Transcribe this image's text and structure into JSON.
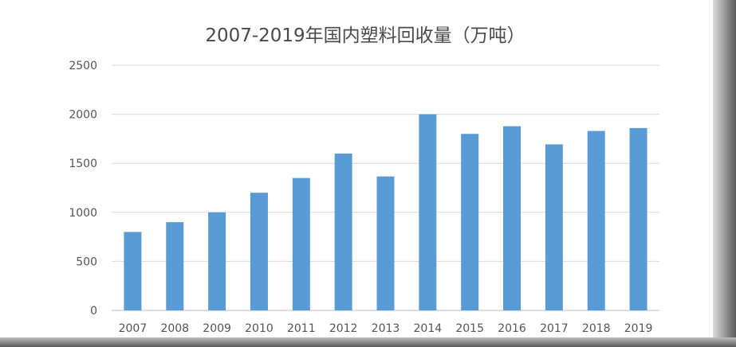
{
  "chart_data": {
    "type": "bar",
    "title": "2007-2019年国内塑料回收量（万吨）",
    "categories": [
      "2007",
      "2008",
      "2009",
      "2010",
      "2011",
      "2012",
      "2013",
      "2014",
      "2015",
      "2016",
      "2017",
      "2018",
      "2019"
    ],
    "values": [
      800,
      900,
      1000,
      1200,
      1350,
      1600,
      1366,
      2000,
      1800,
      1878,
      1693,
      1830,
      1860
    ],
    "yticks": [
      "0",
      "500",
      "1000",
      "1500",
      "2000",
      "2500"
    ],
    "ylim": [
      0,
      2500
    ],
    "grid": true,
    "legend": "none",
    "bar_color": "#5b9bd5"
  }
}
